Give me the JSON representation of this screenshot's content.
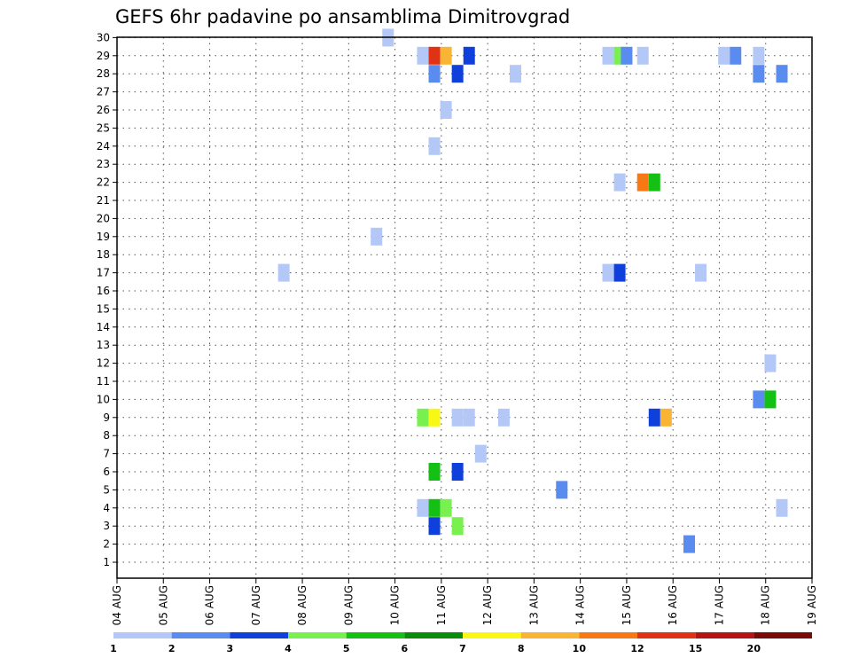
{
  "chart_data": {
    "type": "heatmap",
    "title": "GEFS 6hr padavine po ansamblima Dimitrovgrad",
    "x_tick_labels": [
      "04 AUG",
      "05 AUG",
      "06 AUG",
      "07 AUG",
      "08 AUG",
      "09 AUG",
      "10 AUG",
      "11 AUG",
      "12 AUG",
      "13 AUG",
      "14 AUG",
      "15 AUG",
      "16 AUG",
      "17 AUG",
      "18 AUG",
      "19 AUG"
    ],
    "xlim": [
      0,
      15
    ],
    "x_unit": "days since 04 AUG",
    "y_tick_labels": [
      "1",
      "2",
      "3",
      "4",
      "5",
      "6",
      "7",
      "8",
      "9",
      "10",
      "11",
      "12",
      "13",
      "14",
      "15",
      "16",
      "17",
      "18",
      "19",
      "20",
      "21",
      "22",
      "23",
      "24",
      "25",
      "26",
      "27",
      "28",
      "29",
      "30"
    ],
    "ylim": [
      1,
      30
    ],
    "grid": true,
    "legend": {
      "labels": [
        "1",
        "2",
        "3",
        "4",
        "5",
        "6",
        "7",
        "8",
        "10",
        "12",
        "15",
        "20"
      ],
      "colors": [
        "#b4c8f8",
        "#5a8cf0",
        "#1040dc",
        "#78f050",
        "#14c014",
        "#0a8c0a",
        "#f8f814",
        "#f8b432",
        "#f87814",
        "#e03214",
        "#b41414",
        "#780a0a"
      ]
    },
    "cells": [
      {
        "x": 5.85,
        "y": 30,
        "color": "#b4c8f8"
      },
      {
        "x": 6.6,
        "y": 29,
        "color": "#b4c8f8"
      },
      {
        "x": 6.85,
        "y": 29,
        "color": "#e03214"
      },
      {
        "x": 7.1,
        "y": 29,
        "color": "#f8b432"
      },
      {
        "x": 7.6,
        "y": 29,
        "color": "#1040dc"
      },
      {
        "x": 10.6,
        "y": 29,
        "color": "#b4c8f8"
      },
      {
        "x": 10.85,
        "y": 29,
        "color": "#78f050"
      },
      {
        "x": 11.0,
        "y": 29,
        "color": "#5a8cf0"
      },
      {
        "x": 11.35,
        "y": 29,
        "color": "#b4c8f8"
      },
      {
        "x": 13.1,
        "y": 29,
        "color": "#b4c8f8"
      },
      {
        "x": 13.35,
        "y": 29,
        "color": "#5a8cf0"
      },
      {
        "x": 13.85,
        "y": 29,
        "color": "#b4c8f8"
      },
      {
        "x": 6.85,
        "y": 28,
        "color": "#5a8cf0"
      },
      {
        "x": 7.35,
        "y": 28,
        "color": "#1040dc"
      },
      {
        "x": 8.6,
        "y": 28,
        "color": "#b4c8f8"
      },
      {
        "x": 13.85,
        "y": 28,
        "color": "#5a8cf0"
      },
      {
        "x": 14.35,
        "y": 28,
        "color": "#5a8cf0"
      },
      {
        "x": 7.1,
        "y": 26,
        "color": "#b4c8f8"
      },
      {
        "x": 6.85,
        "y": 24,
        "color": "#b4c8f8"
      },
      {
        "x": 10.85,
        "y": 22,
        "color": "#b4c8f8"
      },
      {
        "x": 11.35,
        "y": 22,
        "color": "#f87814"
      },
      {
        "x": 11.6,
        "y": 22,
        "color": "#14c014"
      },
      {
        "x": 5.6,
        "y": 19,
        "color": "#b4c8f8"
      },
      {
        "x": 3.6,
        "y": 17,
        "color": "#b4c8f8"
      },
      {
        "x": 10.6,
        "y": 17,
        "color": "#b4c8f8"
      },
      {
        "x": 10.85,
        "y": 17,
        "color": "#1040dc"
      },
      {
        "x": 12.6,
        "y": 17,
        "color": "#b4c8f8"
      },
      {
        "x": 14.1,
        "y": 12,
        "color": "#b4c8f8"
      },
      {
        "x": 13.85,
        "y": 10,
        "color": "#5a8cf0"
      },
      {
        "x": 14.1,
        "y": 10,
        "color": "#14c014"
      },
      {
        "x": 6.6,
        "y": 9,
        "color": "#78f050"
      },
      {
        "x": 6.85,
        "y": 9,
        "color": "#f8f814"
      },
      {
        "x": 7.35,
        "y": 9,
        "color": "#b4c8f8"
      },
      {
        "x": 7.6,
        "y": 9,
        "color": "#b4c8f8"
      },
      {
        "x": 8.35,
        "y": 9,
        "color": "#b4c8f8"
      },
      {
        "x": 11.6,
        "y": 9,
        "color": "#1040dc"
      },
      {
        "x": 11.85,
        "y": 9,
        "color": "#f8b432"
      },
      {
        "x": 7.85,
        "y": 7,
        "color": "#b4c8f8"
      },
      {
        "x": 6.85,
        "y": 6,
        "color": "#14c014"
      },
      {
        "x": 7.35,
        "y": 6,
        "color": "#1040dc"
      },
      {
        "x": 9.6,
        "y": 5,
        "color": "#5a8cf0"
      },
      {
        "x": 6.6,
        "y": 4,
        "color": "#b4c8f8"
      },
      {
        "x": 6.85,
        "y": 4,
        "color": "#14c014"
      },
      {
        "x": 7.1,
        "y": 4,
        "color": "#78f050"
      },
      {
        "x": 14.35,
        "y": 4,
        "color": "#b4c8f8"
      },
      {
        "x": 6.85,
        "y": 3,
        "color": "#1040dc"
      },
      {
        "x": 7.35,
        "y": 3,
        "color": "#78f050"
      },
      {
        "x": 12.35,
        "y": 2,
        "color": "#5a8cf0"
      }
    ]
  }
}
